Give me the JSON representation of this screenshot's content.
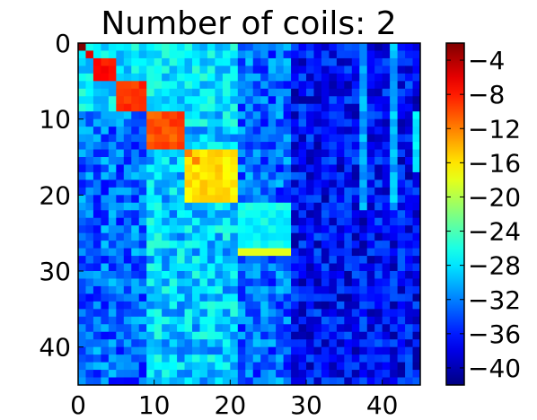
{
  "chart_data": {
    "type": "heatmap",
    "title": "Number of coils: 2",
    "xlabel": "",
    "ylabel": "",
    "rows": 45,
    "cols": 45,
    "xlim": [
      0,
      45
    ],
    "ylim": [
      0,
      45
    ],
    "x_ticks": [
      0,
      10,
      20,
      30,
      40
    ],
    "x_tick_labels": [
      "0",
      "10",
      "20",
      "30",
      "40"
    ],
    "y_ticks": [
      0,
      10,
      20,
      30,
      40
    ],
    "y_tick_labels": [
      "0",
      "10",
      "20",
      "30",
      "40"
    ],
    "colormap": "jet",
    "color_range": [
      -42,
      -2
    ],
    "colorbar_ticks": [
      -4,
      -8,
      -12,
      -16,
      -20,
      -24,
      -28,
      -32,
      -36,
      -40
    ],
    "colorbar_tick_labels": [
      "−4",
      "−8",
      "−12",
      "−16",
      "−20",
      "−24",
      "−28",
      "−32",
      "−36",
      "−40"
    ],
    "blocks": [
      {
        "start": 0,
        "end": 2,
        "value": -26
      },
      {
        "start": 2,
        "end": 5,
        "value": -8
      },
      {
        "start": 5,
        "end": 9,
        "value": -9
      },
      {
        "start": 9,
        "end": 14,
        "value": -10
      },
      {
        "start": 14,
        "end": 21,
        "value": -16
      },
      {
        "start": 21,
        "end": 28,
        "value": -27
      }
    ],
    "block_diagonal_peaks": [
      {
        "row": 0,
        "col": 0,
        "value": -2
      },
      {
        "row": 1,
        "col": 1,
        "value": -6
      },
      {
        "row": 14,
        "col": 14,
        "value": -12
      },
      {
        "row": 15,
        "col": 15,
        "value": -12
      },
      {
        "row": 27,
        "col": 21,
        "value": -18
      },
      {
        "row": 27,
        "col": 22,
        "value": -18
      },
      {
        "row": 27,
        "col": 23,
        "value": -18
      },
      {
        "row": 27,
        "col": 24,
        "value": -18
      },
      {
        "row": 27,
        "col": 25,
        "value": -18
      },
      {
        "row": 27,
        "col": 26,
        "value": -18
      },
      {
        "row": 27,
        "col": 27,
        "value": -18
      }
    ],
    "off_block_level_by_column": [
      {
        "col_range": [
          0,
          9
        ],
        "value": -33
      },
      {
        "col_range": [
          9,
          21
        ],
        "value": -29
      },
      {
        "col_range": [
          21,
          28
        ],
        "value": -33
      },
      {
        "col_range": [
          28,
          45
        ],
        "value": -37
      }
    ],
    "bright_column_streaks": [
      {
        "col": 37,
        "row_range": [
          0,
          22
        ],
        "value": -30
      },
      {
        "col": 41,
        "row_range": [
          0,
          22
        ],
        "value": -30
      },
      {
        "col": 44,
        "row_range": [
          9,
          17
        ],
        "value": -28
      }
    ],
    "grid": false
  }
}
